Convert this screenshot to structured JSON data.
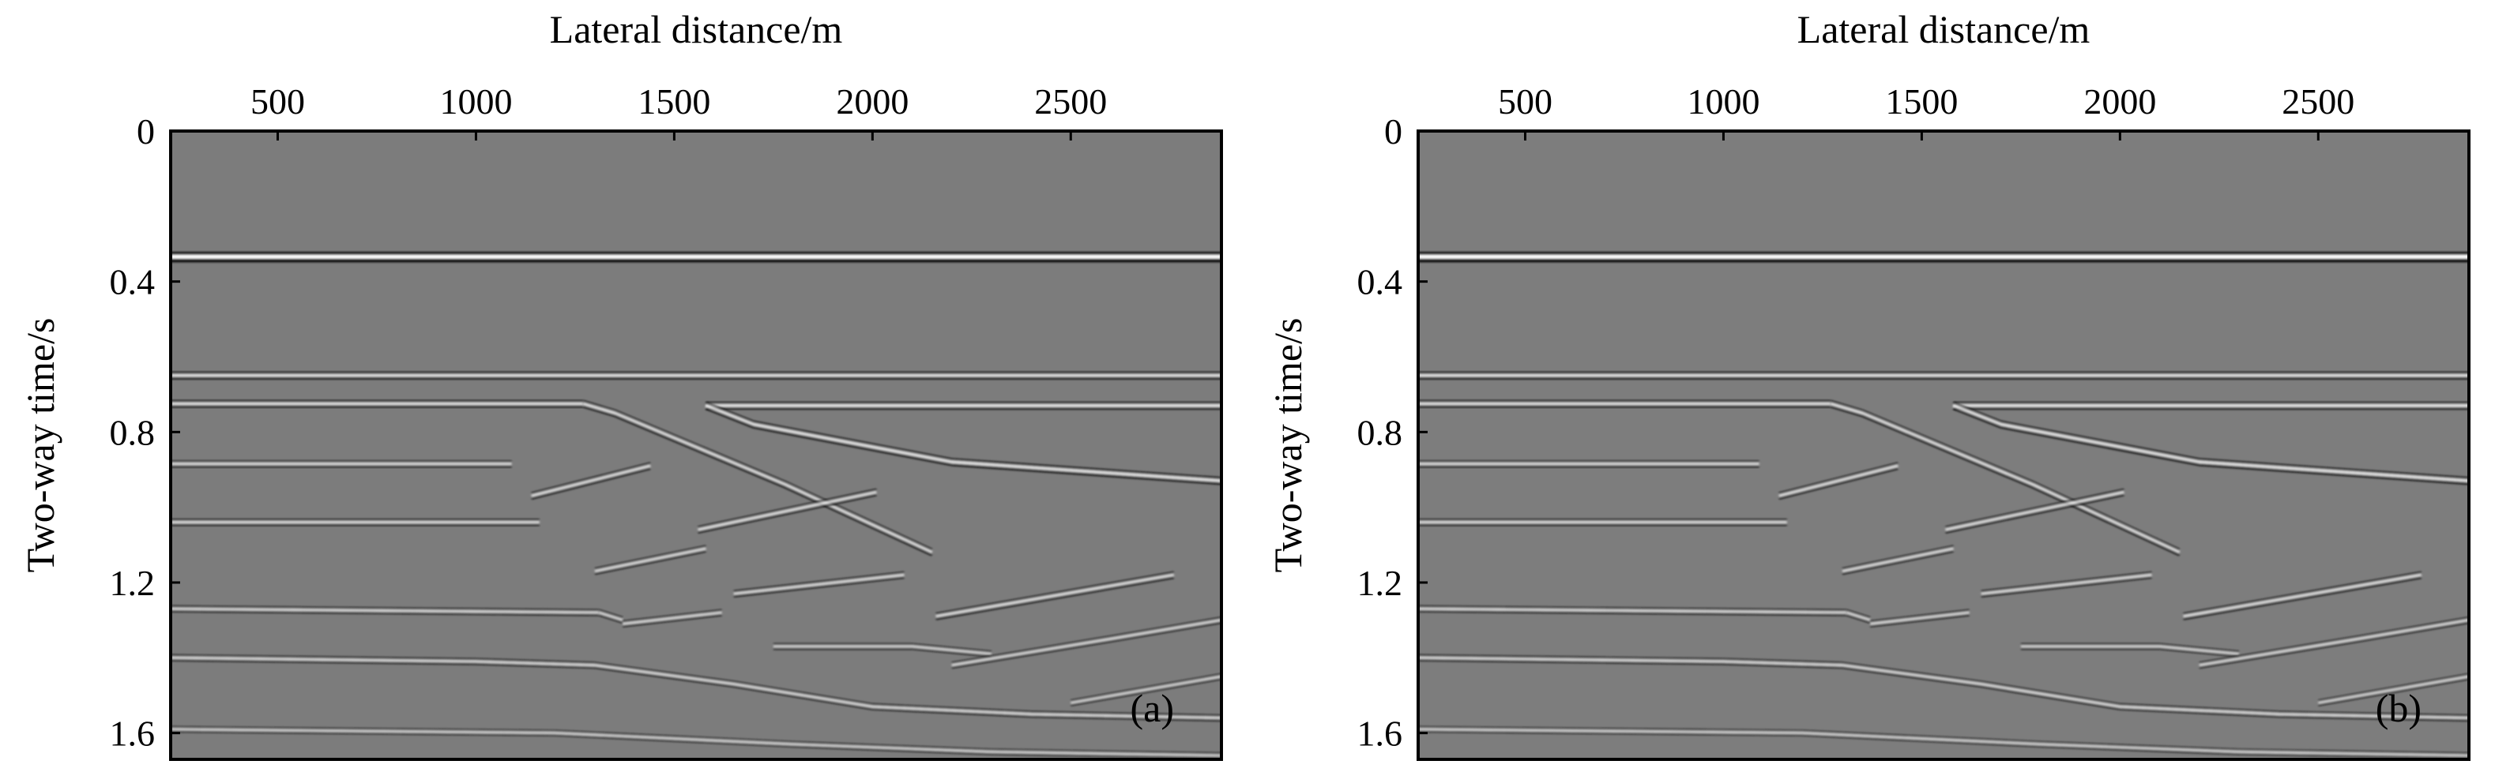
{
  "chart_data": [
    {
      "type": "heatmap",
      "panel_label": "(a)",
      "xlabel": "Lateral distance/m",
      "ylabel": "Two-way time/s",
      "x_axis_position": "top",
      "xlim": [
        230,
        2880
      ],
      "ylim": [
        0,
        1.67
      ],
      "y_inverted": true,
      "xticks": [
        500,
        1000,
        1500,
        2000,
        2500
      ],
      "xtick_labels": [
        "500",
        "1000",
        "1500",
        "2000",
        "2500"
      ],
      "yticks": [
        0,
        0.4,
        0.8,
        1.2,
        1.6
      ],
      "ytick_labels": [
        "0",
        "0.4",
        "0.8",
        "1.2",
        "1.6"
      ],
      "colormap": "grayscale",
      "background_color": "#7c7c7c",
      "reflectors": [
        {
          "x": [
            230,
            2880
          ],
          "t": [
            0.335,
            0.335
          ],
          "strength": 1.0
        },
        {
          "x": [
            230,
            2880
          ],
          "t": [
            0.65,
            0.65
          ],
          "strength": 0.55
        },
        {
          "x": [
            230,
            1270
          ],
          "t": [
            0.725,
            0.725
          ],
          "strength": 0.5
        },
        {
          "x": [
            1270,
            1350,
            1780,
            2150
          ],
          "t": [
            0.725,
            0.75,
            0.94,
            1.12
          ],
          "strength": 0.5
        },
        {
          "x": [
            1580,
            2880
          ],
          "t": [
            0.73,
            0.73
          ],
          "strength": 0.55
        },
        {
          "x": [
            1580,
            1700,
            2200,
            2880
          ],
          "t": [
            0.73,
            0.78,
            0.88,
            0.93
          ],
          "strength": 0.55
        },
        {
          "x": [
            230,
            1090
          ],
          "t": [
            0.885,
            0.885
          ],
          "strength": 0.4
        },
        {
          "x": [
            1140,
            1440
          ],
          "t": [
            0.97,
            0.89
          ],
          "strength": 0.45
        },
        {
          "x": [
            230,
            1160
          ],
          "t": [
            1.04,
            1.04
          ],
          "strength": 0.4
        },
        {
          "x": [
            1560,
            2010
          ],
          "t": [
            1.06,
            0.96
          ],
          "strength": 0.45
        },
        {
          "x": [
            1300,
            1580
          ],
          "t": [
            1.17,
            1.11
          ],
          "strength": 0.4
        },
        {
          "x": [
            1650,
            2080
          ],
          "t": [
            1.23,
            1.18
          ],
          "strength": 0.4
        },
        {
          "x": [
            230,
            1310
          ],
          "t": [
            1.27,
            1.28
          ],
          "strength": 0.35
        },
        {
          "x": [
            1310,
            1370
          ],
          "t": [
            1.28,
            1.3
          ],
          "strength": 0.35
        },
        {
          "x": [
            1370,
            1620
          ],
          "t": [
            1.31,
            1.28
          ],
          "strength": 0.35
        },
        {
          "x": [
            2160,
            2760
          ],
          "t": [
            1.29,
            1.18
          ],
          "strength": 0.45
        },
        {
          "x": [
            230,
            1000,
            1300,
            1650,
            2000,
            2400,
            2880
          ],
          "t": [
            1.4,
            1.41,
            1.42,
            1.47,
            1.53,
            1.55,
            1.56
          ],
          "strength": 0.35
        },
        {
          "x": [
            1750,
            2100,
            2300
          ],
          "t": [
            1.37,
            1.37,
            1.39
          ],
          "strength": 0.3
        },
        {
          "x": [
            2200,
            2600,
            2880
          ],
          "t": [
            1.42,
            1.35,
            1.3
          ],
          "strength": 0.35
        },
        {
          "x": [
            2500,
            2880
          ],
          "t": [
            1.52,
            1.45
          ],
          "strength": 0.3
        },
        {
          "x": [
            230,
            1200,
            1800,
            2300,
            2880
          ],
          "t": [
            1.59,
            1.6,
            1.63,
            1.65,
            1.66
          ],
          "strength": 0.25
        }
      ]
    },
    {
      "type": "heatmap",
      "panel_label": "(b)",
      "xlabel": "Lateral distance/m",
      "ylabel": "Two-way time/s",
      "x_axis_position": "top",
      "xlim": [
        230,
        2880
      ],
      "ylim": [
        0,
        1.67
      ],
      "y_inverted": true,
      "xticks": [
        500,
        1000,
        1500,
        2000,
        2500
      ],
      "xtick_labels": [
        "500",
        "1000",
        "1500",
        "2000",
        "2500"
      ],
      "yticks": [
        0,
        0.4,
        0.8,
        1.2,
        1.6
      ],
      "ytick_labels": [
        "0",
        "0.4",
        "0.8",
        "1.2",
        "1.6"
      ],
      "colormap": "grayscale",
      "background_color": "#7d7d7d",
      "reflectors": [
        {
          "x": [
            230,
            2880
          ],
          "t": [
            0.335,
            0.335
          ],
          "strength": 1.0
        },
        {
          "x": [
            230,
            2880
          ],
          "t": [
            0.65,
            0.65
          ],
          "strength": 0.55
        },
        {
          "x": [
            230,
            1270
          ],
          "t": [
            0.725,
            0.725
          ],
          "strength": 0.5
        },
        {
          "x": [
            1270,
            1350,
            1780,
            2150
          ],
          "t": [
            0.725,
            0.75,
            0.94,
            1.12
          ],
          "strength": 0.5
        },
        {
          "x": [
            1580,
            2880
          ],
          "t": [
            0.73,
            0.73
          ],
          "strength": 0.55
        },
        {
          "x": [
            1580,
            1700,
            2200,
            2880
          ],
          "t": [
            0.73,
            0.78,
            0.88,
            0.93
          ],
          "strength": 0.55
        },
        {
          "x": [
            230,
            1090
          ],
          "t": [
            0.885,
            0.885
          ],
          "strength": 0.4
        },
        {
          "x": [
            1140,
            1440
          ],
          "t": [
            0.97,
            0.89
          ],
          "strength": 0.45
        },
        {
          "x": [
            230,
            1160
          ],
          "t": [
            1.04,
            1.04
          ],
          "strength": 0.4
        },
        {
          "x": [
            1560,
            2010
          ],
          "t": [
            1.06,
            0.96
          ],
          "strength": 0.45
        },
        {
          "x": [
            1300,
            1580
          ],
          "t": [
            1.17,
            1.11
          ],
          "strength": 0.4
        },
        {
          "x": [
            1650,
            2080
          ],
          "t": [
            1.23,
            1.18
          ],
          "strength": 0.4
        },
        {
          "x": [
            230,
            1310
          ],
          "t": [
            1.27,
            1.28
          ],
          "strength": 0.35
        },
        {
          "x": [
            1310,
            1370
          ],
          "t": [
            1.28,
            1.3
          ],
          "strength": 0.35
        },
        {
          "x": [
            1370,
            1620
          ],
          "t": [
            1.31,
            1.28
          ],
          "strength": 0.35
        },
        {
          "x": [
            2160,
            2760
          ],
          "t": [
            1.29,
            1.18
          ],
          "strength": 0.45
        },
        {
          "x": [
            230,
            1000,
            1300,
            1650,
            2000,
            2400,
            2880
          ],
          "t": [
            1.4,
            1.41,
            1.42,
            1.47,
            1.53,
            1.55,
            1.56
          ],
          "strength": 0.35
        },
        {
          "x": [
            1750,
            2100,
            2300
          ],
          "t": [
            1.37,
            1.37,
            1.39
          ],
          "strength": 0.3
        },
        {
          "x": [
            2200,
            2600,
            2880
          ],
          "t": [
            1.42,
            1.35,
            1.3
          ],
          "strength": 0.35
        },
        {
          "x": [
            2500,
            2880
          ],
          "t": [
            1.52,
            1.45
          ],
          "strength": 0.3
        },
        {
          "x": [
            230,
            1200,
            1800,
            2300,
            2880
          ],
          "t": [
            1.59,
            1.6,
            1.63,
            1.65,
            1.66
          ],
          "strength": 0.25
        }
      ]
    }
  ]
}
